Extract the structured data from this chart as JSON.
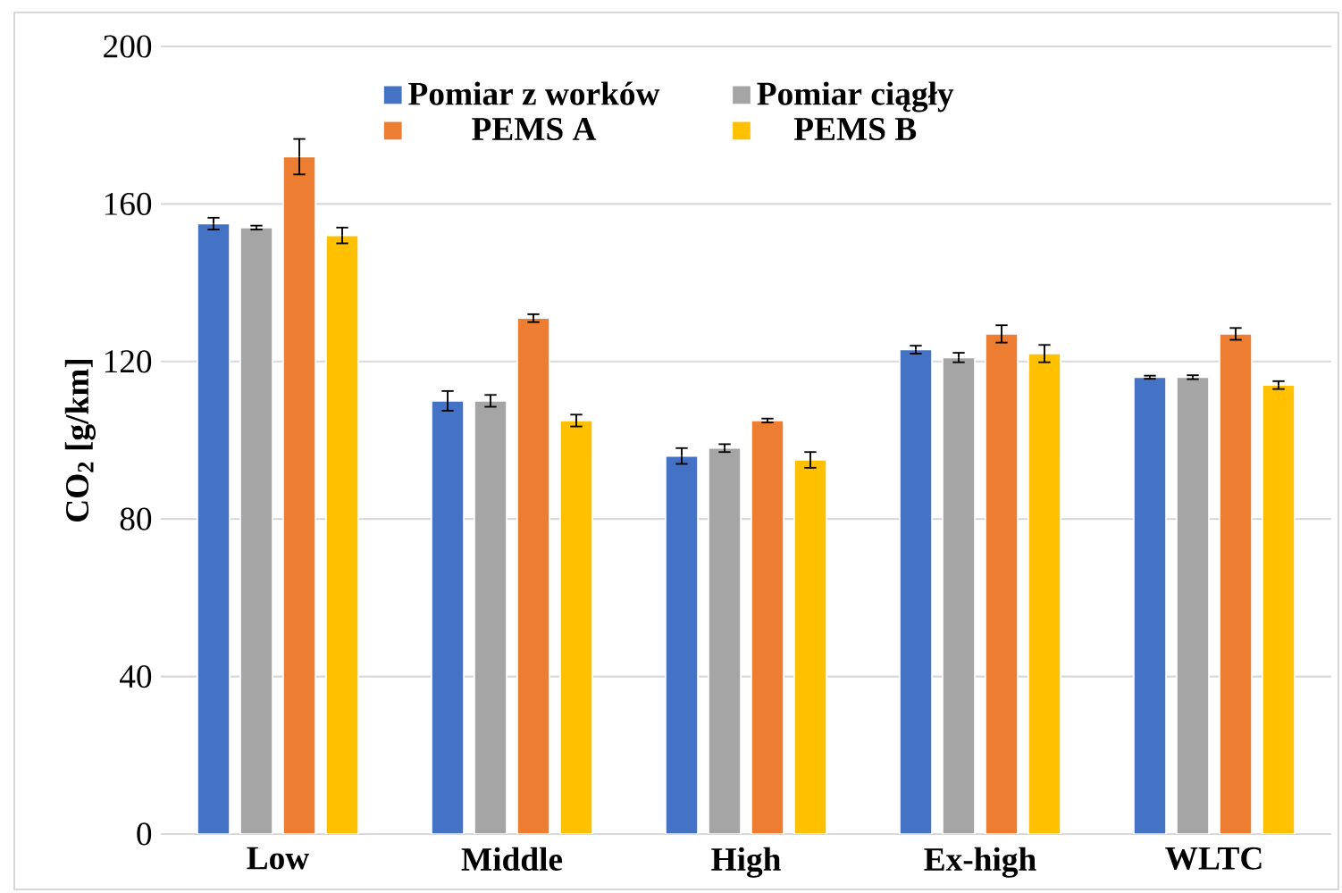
{
  "chart_data": {
    "type": "bar",
    "ylabel": "CO$_{2}$ [g/km]",
    "categories": [
      "Low",
      "Middle",
      "High",
      "Ex-high",
      "WLTC"
    ],
    "series": [
      {
        "name": "Pomiar z worków",
        "color": "#4472c4",
        "values": [
          155,
          110,
          96,
          123,
          116
        ],
        "errors": [
          1.5,
          2.5,
          2,
          1,
          0.4
        ]
      },
      {
        "name": "Pomiar ciągły",
        "color": "#a5a5a5",
        "values": [
          154,
          110,
          98,
          121,
          116
        ],
        "errors": [
          0.5,
          1.5,
          1,
          1.2,
          0.5
        ]
      },
      {
        "name": "PEMS A",
        "color": "#ed7d31",
        "values": [
          172,
          131,
          105,
          127,
          127
        ],
        "errors": [
          4.5,
          1,
          0.5,
          2.2,
          1.5
        ]
      },
      {
        "name": "PEMS B",
        "color": "#ffc000",
        "values": [
          152,
          105,
          95,
          122,
          114
        ],
        "errors": [
          2,
          1.5,
          2,
          2.2,
          1
        ]
      }
    ],
    "ylim": [
      0,
      200
    ],
    "yticks": [
      0,
      40,
      80,
      120,
      160,
      200
    ],
    "grid": "y",
    "legend": "top"
  }
}
